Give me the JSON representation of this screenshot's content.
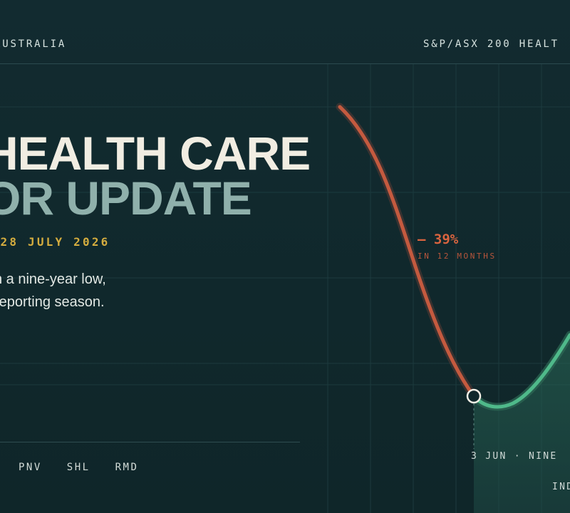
{
  "header": {
    "left_label": "AUSTRALIA",
    "right_label": "S&P/ASX 200 HEALT"
  },
  "hero": {
    "title_line1": "HEALTH CARE",
    "title_line2": "OR UPDATE",
    "date": "28 JULY 2026",
    "description_line1": "n a nine-year low,",
    "description_line2": " reporting season."
  },
  "tickers": [
    "PNV",
    "SHL",
    "RMD"
  ],
  "chart_annotations": {
    "change_value": "– 39%",
    "change_period": "IN 12 MONTHS",
    "low_point_label": "3 JUN  ·  NINE",
    "index_label": "IND"
  },
  "colors": {
    "background": "#10282c",
    "decline": "#c45a3f",
    "recovery": "#4fb98a",
    "date_accent": "#d5ad3f"
  },
  "chart_data": {
    "type": "line",
    "title": "",
    "xlabel": "",
    "ylabel": "",
    "series": [
      {
        "name": "",
        "segments": [
          "decline",
          "recovery"
        ]
      }
    ],
    "annotations": [
      {
        "text": "– 39%",
        "subtext": "IN 12 MONTHS"
      },
      {
        "text": "3 JUN",
        "note": "NINE"
      }
    ],
    "grid": true
  }
}
